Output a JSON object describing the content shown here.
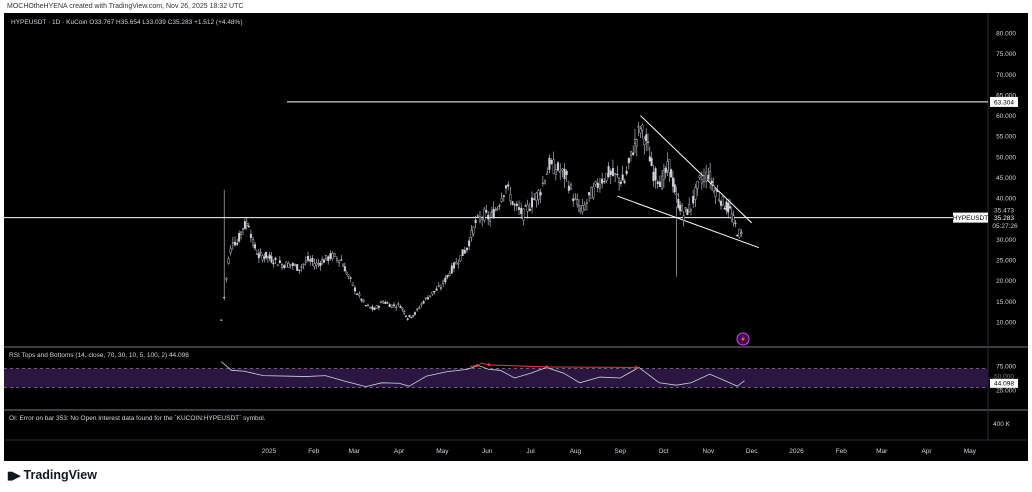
{
  "credit": "MOCHOtheHYENA created with TradingView.com, Nov 26, 2025 18:32 UTC",
  "legend": "HYPEUSDT · 1D · KuCoin  O33.767  H35.654  L33.039  C35.283  +1.512 (+4.48%)",
  "rsi_legend": "RSI Tops and Bottoms (14, close, 70, 30, 10, 5, 100, 2)  44.098",
  "oi_note": "OI: Error on bar 353: No Open Interest data found for the `KUCOIN:HYPEUSDT` symbol.",
  "footer_brand": "TradingView",
  "price_scale_labels": [
    "80.000",
    "75.000",
    "70.000",
    "65.000",
    "60.000",
    "55.000",
    "50.000",
    "45.000",
    "40.000",
    "35.000",
    "30.000",
    "25.000",
    "20.000",
    "15.000",
    "10.000"
  ],
  "rsi_scale_labels": [
    "75.000",
    "50.000",
    "25.000"
  ],
  "oi_scale_label": "400 K",
  "x_axis_labels": [
    "2025",
    "Feb",
    "Mar",
    "Apr",
    "May",
    "Jun",
    "Jul",
    "Aug",
    "Sep",
    "Oct",
    "Nov",
    "Dec",
    "2026",
    "Feb",
    "Mar",
    "Apr",
    "May"
  ],
  "badges": {
    "resistance": "63.304",
    "symbol": "HYPEUSDT",
    "high_marker": "35.473",
    "last_price": "35.283",
    "countdown": "05:27:26",
    "rsi_value": "44.098",
    "rsi_hidden": "50.000"
  },
  "colors": {
    "background": "#000000",
    "candle": "#d1d4dc",
    "trendline": "#ffffff",
    "rsi_line": "#d1d4dc",
    "rsi_band": "#2a1640",
    "divergence": "#f23645"
  },
  "chart_data": {
    "type": "line",
    "title": "HYPEUSDT · 1D · KuCoin",
    "y_range": [
      5,
      82
    ],
    "ohlc_last": {
      "open": 33.767,
      "high": 35.654,
      "low": 33.039,
      "close": 35.283,
      "change": 1.512,
      "change_pct": 4.48
    },
    "price_path": [
      [
        "2024-11-29",
        10.5
      ],
      [
        "2024-12-01",
        16
      ],
      [
        "2024-12-04",
        25
      ],
      [
        "2024-12-07",
        30
      ],
      [
        "2024-12-10",
        29
      ],
      [
        "2024-12-14",
        33
      ],
      [
        "2024-12-18",
        34
      ],
      [
        "2024-12-21",
        29
      ],
      [
        "2024-12-25",
        26
      ],
      [
        "2024-12-30",
        26
      ],
      [
        "2025-01-04",
        25
      ],
      [
        "2025-01-10",
        24
      ],
      [
        "2025-01-16",
        24
      ],
      [
        "2025-01-22",
        23
      ],
      [
        "2025-01-28",
        25
      ],
      [
        "2025-02-03",
        24
      ],
      [
        "2025-02-08",
        25
      ],
      [
        "2025-02-14",
        26
      ],
      [
        "2025-02-20",
        25
      ],
      [
        "2025-02-25",
        21
      ],
      [
        "2025-03-03",
        17
      ],
      [
        "2025-03-09",
        14
      ],
      [
        "2025-03-15",
        13
      ],
      [
        "2025-03-21",
        15
      ],
      [
        "2025-03-27",
        14
      ],
      [
        "2025-04-02",
        14
      ],
      [
        "2025-04-07",
        11
      ],
      [
        "2025-04-12",
        12
      ],
      [
        "2025-04-18",
        15
      ],
      [
        "2025-04-24",
        17
      ],
      [
        "2025-04-30",
        18.5
      ],
      [
        "2025-05-06",
        22
      ],
      [
        "2025-05-12",
        25
      ],
      [
        "2025-05-18",
        28
      ],
      [
        "2025-05-24",
        34
      ],
      [
        "2025-05-30",
        36
      ],
      [
        "2025-06-03",
        35
      ],
      [
        "2025-06-08",
        38
      ],
      [
        "2025-06-14",
        43
      ],
      [
        "2025-06-20",
        38
      ],
      [
        "2025-06-26",
        36
      ],
      [
        "2025-07-02",
        39
      ],
      [
        "2025-07-08",
        42
      ],
      [
        "2025-07-14",
        48
      ],
      [
        "2025-07-20",
        47
      ],
      [
        "2025-07-26",
        45
      ],
      [
        "2025-08-01",
        39
      ],
      [
        "2025-08-06",
        37
      ],
      [
        "2025-08-12",
        41
      ],
      [
        "2025-08-18",
        44
      ],
      [
        "2025-08-24",
        46
      ],
      [
        "2025-08-30",
        45
      ],
      [
        "2025-09-04",
        44
      ],
      [
        "2025-09-10",
        52
      ],
      [
        "2025-09-15",
        57
      ],
      [
        "2025-09-19",
        54
      ],
      [
        "2025-09-24",
        46
      ],
      [
        "2025-09-30",
        44
      ],
      [
        "2025-10-05",
        48
      ],
      [
        "2025-10-10",
        40
      ],
      [
        "2025-10-15",
        36
      ],
      [
        "2025-10-20",
        38
      ],
      [
        "2025-10-26",
        44
      ],
      [
        "2025-11-01",
        46
      ],
      [
        "2025-11-06",
        42
      ],
      [
        "2025-11-11",
        39
      ],
      [
        "2025-11-16",
        37
      ],
      [
        "2025-11-21",
        32
      ],
      [
        "2025-11-24",
        31
      ],
      [
        "2025-11-26",
        35.283
      ]
    ],
    "horizontal_levels": [
      63.304,
      35.283
    ],
    "trendlines": [
      {
        "from": [
          "2025-09-15",
          60
        ],
        "to": [
          "2025-12-01",
          34
        ]
      },
      {
        "from": [
          "2025-08-30",
          40.5
        ],
        "to": [
          "2025-12-06",
          28
        ]
      }
    ],
    "rsi": {
      "overbought": 70,
      "oversold": 30,
      "last": 44.098,
      "path": [
        [
          "2024-11-29",
          84
        ],
        [
          "2024-12-06",
          66
        ],
        [
          "2024-12-15",
          64
        ],
        [
          "2024-12-28",
          55
        ],
        [
          "2025-01-12",
          54
        ],
        [
          "2025-01-26",
          53
        ],
        [
          "2025-02-09",
          55
        ],
        [
          "2025-02-23",
          43
        ],
        [
          "2025-03-09",
          32
        ],
        [
          "2025-03-20",
          40
        ],
        [
          "2025-04-01",
          39
        ],
        [
          "2025-04-08",
          33
        ],
        [
          "2025-04-20",
          54
        ],
        [
          "2025-05-04",
          63
        ],
        [
          "2025-05-18",
          68
        ],
        [
          "2025-05-26",
          76
        ],
        [
          "2025-06-02",
          68
        ],
        [
          "2025-06-10",
          66
        ],
        [
          "2025-06-20",
          50
        ],
        [
          "2025-07-01",
          60
        ],
        [
          "2025-07-12",
          72
        ],
        [
          "2025-07-24",
          60
        ],
        [
          "2025-08-04",
          40
        ],
        [
          "2025-08-18",
          52
        ],
        [
          "2025-09-01",
          50
        ],
        [
          "2025-09-14",
          72
        ],
        [
          "2025-09-28",
          40
        ],
        [
          "2025-10-10",
          35
        ],
        [
          "2025-10-20",
          40
        ],
        [
          "2025-11-02",
          58
        ],
        [
          "2025-11-12",
          45
        ],
        [
          "2025-11-21",
          33
        ],
        [
          "2025-11-26",
          44.098
        ]
      ],
      "divergence_arrows": [
        {
          "from": [
            "2025-05-20",
            74
          ],
          "to": [
            "2025-05-27",
            77
          ]
        },
        {
          "from": [
            "2025-05-27",
            81
          ],
          "to": [
            "2025-06-04",
            77
          ]
        },
        {
          "from": [
            "2025-06-04",
            77
          ],
          "to": [
            "2025-07-14",
            73
          ]
        },
        {
          "from": [
            "2025-07-14",
            73
          ],
          "to": [
            "2025-09-14",
            72
          ]
        }
      ]
    }
  }
}
